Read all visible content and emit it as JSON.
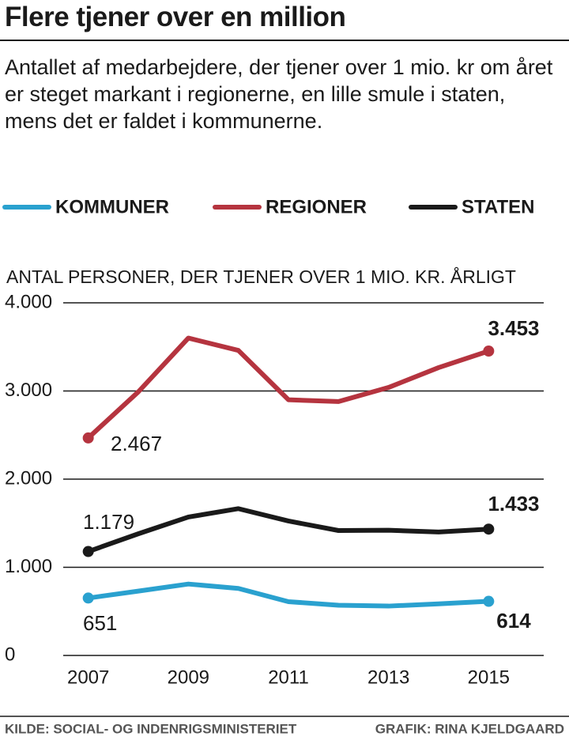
{
  "chart_data": {
    "type": "line",
    "title": "Flere tjener over en million",
    "subtitle": "Antallet af medarbejdere, der tjener over 1 mio. kr om året er steget markant i regionerne, en lille smule i staten, mens det er faldet i kommunerne.",
    "y_axis_title": "ANTAL PERSONER, DER TJENER OVER 1 MIO. KR. ÅRLIGT",
    "source": "KILDE: SOCIAL- OG INDENRIGSMINISTERIET",
    "credit": "GRAFIK: RINA KJELDGAARD",
    "x": [
      2007,
      2008,
      2009,
      2010,
      2011,
      2012,
      2013,
      2014,
      2015
    ],
    "xlim": [
      2006.5,
      2016.1
    ],
    "xticks": [
      2007,
      2009,
      2011,
      2013,
      2015
    ],
    "ylim": [
      0,
      4000
    ],
    "yticks": [
      0,
      {
        "value": 1000,
        "label": "1.000"
      },
      {
        "value": 2000,
        "label": "2.000"
      },
      {
        "value": 3000,
        "label": "3.000"
      },
      {
        "value": 4000,
        "label": "4.000"
      }
    ],
    "grid": true,
    "series": [
      {
        "name": "KOMMUNER",
        "color": "#2aa1cf",
        "values": [
          651,
          730,
          810,
          760,
          610,
          570,
          560,
          585,
          614
        ],
        "value_labels": [
          "651",
          null,
          null,
          null,
          null,
          null,
          null,
          null,
          "614"
        ]
      },
      {
        "name": "REGIONER",
        "color": "#b5343f",
        "values": [
          2467,
          2990,
          3600,
          3460,
          2900,
          2880,
          3040,
          3265,
          3453
        ],
        "value_labels": [
          "2.467",
          null,
          null,
          null,
          null,
          null,
          null,
          null,
          "3.453"
        ]
      },
      {
        "name": "STATEN",
        "color": "#1a1a1a",
        "values": [
          1179,
          1380,
          1570,
          1665,
          1525,
          1417,
          1420,
          1400,
          1433
        ],
        "value_labels": [
          "1.179",
          null,
          null,
          null,
          null,
          null,
          null,
          null,
          "1.433"
        ]
      }
    ]
  }
}
